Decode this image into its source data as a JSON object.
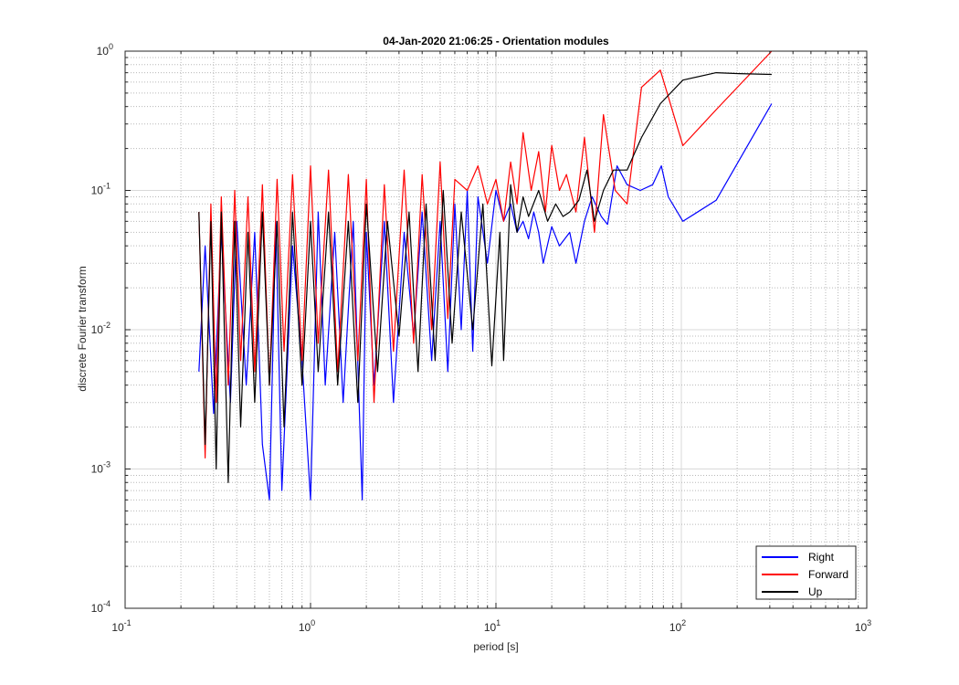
{
  "chart_data": {
    "type": "line",
    "title": "04-Jan-2020 21:06:25 - Orientation modules",
    "xlabel": "period [s]",
    "ylabel": "discrete Fourier transform",
    "xscale": "log",
    "yscale": "log",
    "xlim": [
      0.1,
      1000
    ],
    "ylim": [
      0.0001,
      1
    ],
    "grid": "on (major and minor)",
    "legend_placement": "bottom-right",
    "x_ticks": [
      {
        "base": "10",
        "exp": "-1"
      },
      {
        "base": "10",
        "exp": "0"
      },
      {
        "base": "10",
        "exp": "1"
      },
      {
        "base": "10",
        "exp": "2"
      },
      {
        "base": "10",
        "exp": "3"
      }
    ],
    "y_ticks": [
      {
        "base": "10",
        "exp": "-4"
      },
      {
        "base": "10",
        "exp": "-3"
      },
      {
        "base": "10",
        "exp": "-2"
      },
      {
        "base": "10",
        "exp": "-1"
      },
      {
        "base": "10",
        "exp": "0"
      }
    ],
    "series": [
      {
        "name": "Right",
        "color": "#0000ff",
        "x": [
          0.25,
          0.27,
          0.3,
          0.33,
          0.37,
          0.4,
          0.45,
          0.5,
          0.55,
          0.6,
          0.65,
          0.7,
          0.8,
          0.9,
          1.0,
          1.1,
          1.2,
          1.35,
          1.5,
          1.7,
          1.9,
          2.0,
          2.2,
          2.5,
          2.8,
          3.2,
          3.6,
          4.0,
          4.5,
          5.0,
          5.5,
          6.0,
          6.5,
          7.0,
          7.5,
          8.0,
          9.0,
          10.0,
          11.0,
          12.0,
          13.0,
          14.0,
          15.0,
          16.0,
          17.0,
          18.0,
          20.0,
          22.0,
          25.0,
          27.0,
          30.0,
          33.0,
          37.0,
          40.0,
          45.0,
          51.0,
          60.0,
          70.0,
          78.0,
          85.0,
          102.0,
          154.0,
          307.0
        ],
        "y": [
          0.005,
          0.04,
          0.0025,
          0.05,
          0.003,
          0.06,
          0.004,
          0.05,
          0.0015,
          0.0006,
          0.06,
          0.0007,
          0.04,
          0.006,
          0.0006,
          0.07,
          0.004,
          0.05,
          0.003,
          0.06,
          0.0006,
          0.05,
          0.004,
          0.06,
          0.003,
          0.05,
          0.009,
          0.07,
          0.006,
          0.06,
          0.005,
          0.08,
          0.01,
          0.1,
          0.007,
          0.09,
          0.03,
          0.1,
          0.06,
          0.08,
          0.05,
          0.06,
          0.045,
          0.07,
          0.05,
          0.03,
          0.055,
          0.04,
          0.05,
          0.03,
          0.06,
          0.09,
          0.065,
          0.057,
          0.15,
          0.11,
          0.1,
          0.11,
          0.15,
          0.09,
          0.06,
          0.085,
          0.42
        ]
      },
      {
        "name": "Forward",
        "color": "#ff0000",
        "x": [
          0.25,
          0.27,
          0.29,
          0.31,
          0.33,
          0.36,
          0.39,
          0.42,
          0.46,
          0.5,
          0.55,
          0.6,
          0.66,
          0.72,
          0.8,
          0.9,
          1.0,
          1.1,
          1.25,
          1.4,
          1.6,
          1.8,
          2.0,
          2.2,
          2.5,
          2.8,
          3.2,
          3.6,
          4.0,
          4.5,
          5.0,
          5.5,
          6.0,
          7.0,
          8.0,
          9.0,
          10.0,
          11.0,
          12.0,
          13.0,
          14.0,
          15.5,
          17.0,
          18.5,
          20.0,
          22.0,
          24.0,
          27.0,
          30.0,
          34.0,
          38.0,
          44.0,
          51.0,
          61.0,
          77.0,
          102.0,
          154.0,
          307.0
        ],
        "y": [
          0.07,
          0.0012,
          0.08,
          0.003,
          0.09,
          0.004,
          0.1,
          0.006,
          0.09,
          0.005,
          0.11,
          0.004,
          0.12,
          0.007,
          0.13,
          0.006,
          0.15,
          0.008,
          0.14,
          0.005,
          0.13,
          0.006,
          0.12,
          0.003,
          0.11,
          0.007,
          0.14,
          0.008,
          0.13,
          0.01,
          0.16,
          0.012,
          0.12,
          0.1,
          0.15,
          0.08,
          0.12,
          0.06,
          0.16,
          0.08,
          0.26,
          0.1,
          0.19,
          0.07,
          0.21,
          0.1,
          0.13,
          0.07,
          0.24,
          0.05,
          0.35,
          0.1,
          0.08,
          0.55,
          0.73,
          0.21,
          0.38,
          1.0
        ]
      },
      {
        "name": "Up",
        "color": "#000000",
        "x": [
          0.25,
          0.27,
          0.29,
          0.31,
          0.33,
          0.36,
          0.39,
          0.42,
          0.46,
          0.5,
          0.55,
          0.6,
          0.66,
          0.72,
          0.8,
          0.9,
          1.0,
          1.1,
          1.25,
          1.4,
          1.6,
          1.8,
          2.0,
          2.3,
          2.6,
          3.0,
          3.4,
          3.8,
          4.2,
          4.7,
          5.2,
          5.8,
          6.5,
          7.5,
          8.5,
          9.5,
          10.5,
          11.0,
          12.0,
          13.0,
          14.0,
          15.0,
          17.0,
          19.0,
          21.0,
          23.0,
          25.0,
          28.0,
          31.0,
          34.0,
          38.0,
          43.0,
          51.0,
          61.0,
          77.0,
          102.0,
          154.0,
          205.0,
          307.0
        ],
        "y": [
          0.07,
          0.0015,
          0.06,
          0.001,
          0.07,
          0.0008,
          0.06,
          0.002,
          0.05,
          0.003,
          0.07,
          0.004,
          0.06,
          0.002,
          0.07,
          0.004,
          0.06,
          0.005,
          0.07,
          0.004,
          0.06,
          0.003,
          0.08,
          0.005,
          0.06,
          0.009,
          0.07,
          0.005,
          0.08,
          0.006,
          0.1,
          0.008,
          0.07,
          0.01,
          0.08,
          0.0055,
          0.05,
          0.006,
          0.11,
          0.05,
          0.09,
          0.065,
          0.1,
          0.06,
          0.08,
          0.065,
          0.07,
          0.085,
          0.14,
          0.06,
          0.1,
          0.14,
          0.14,
          0.24,
          0.42,
          0.62,
          0.7,
          0.69,
          0.68
        ]
      }
    ]
  }
}
